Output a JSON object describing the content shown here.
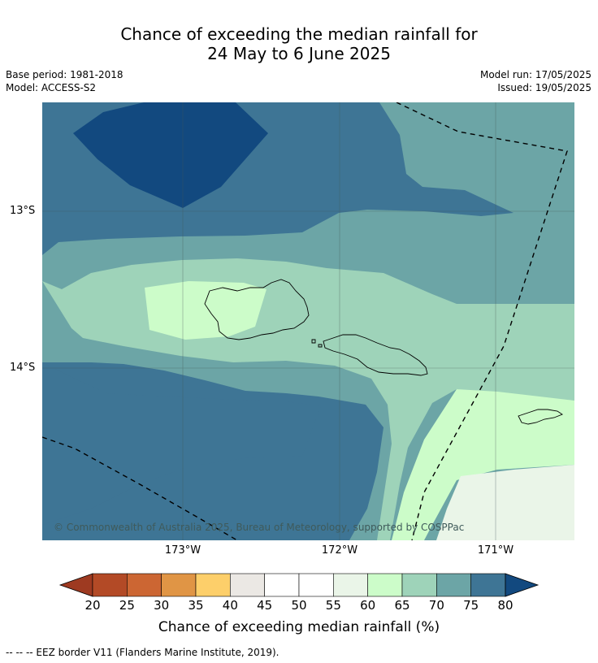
{
  "title": {
    "line1": "Chance of exceeding the median rainfall for",
    "line2": "24 May to 6 June 2025"
  },
  "meta": {
    "base_period": "Base period: 1981-2018",
    "model": "Model: ACCESS-S2",
    "model_run": "Model run: 17/05/2025",
    "issued": "Issued: 19/05/2025"
  },
  "map": {
    "lat_labels": [
      "13°S",
      "14°S"
    ],
    "lon_labels": [
      "173°W",
      "172°W",
      "171°W"
    ],
    "copyright": "© Commonwealth of Australia 2025, Bureau of Meteorology, supported by COSPPac"
  },
  "colorbar": {
    "ticks": [
      "20",
      "25",
      "30",
      "35",
      "40",
      "45",
      "50",
      "55",
      "60",
      "65",
      "70",
      "75",
      "80"
    ],
    "colors": [
      "#9e3a21",
      "#b34a26",
      "#cc6633",
      "#e09545",
      "#fdcf6a",
      "#ebe8e4",
      "#ffffff",
      "#ffffff",
      "#eaf5e8",
      "#ccfcc9",
      "#9ed3b9",
      "#6ca5a6",
      "#3e7595",
      "#12497f"
    ],
    "label": "Chance of exceeding median rainfall (%)"
  },
  "footnote": "--  --  -- EEZ border V11 (Flanders Marine Institute, 2019)."
}
